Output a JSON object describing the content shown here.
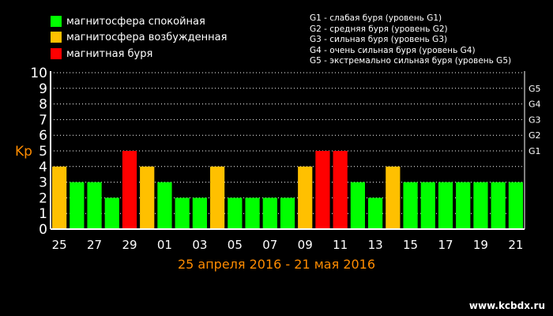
{
  "legend": [
    {
      "label": "магнитосфера спокойная",
      "color": "#00ff00"
    },
    {
      "label": "магнитосфера возбужденная",
      "color": "#ffc000"
    },
    {
      "label": "магнитная буря",
      "color": "#ff0000"
    }
  ],
  "storm_levels": [
    "G1 - слабая буря (уровень G1)",
    "G2 - средняя буря (уровень G2)",
    "G3 - сильная буря (уровень G3)",
    "G4 - очень сильная буря (уровень G4)",
    "G5 - экстремально сильная буря (уровень G5)"
  ],
  "period": "25 апреля 2016 - 21 мая 2016",
  "watermark": "www.kcbdx.ru",
  "chart_data": {
    "type": "bar",
    "ylabel": "Kp",
    "ylim": [
      0,
      10
    ],
    "yticks": [
      0,
      1,
      2,
      3,
      4,
      5,
      6,
      7,
      8,
      9,
      10
    ],
    "right_ticks": [
      {
        "value": 5,
        "label": "G1"
      },
      {
        "value": 6,
        "label": "G2"
      },
      {
        "value": 7,
        "label": "G3"
      },
      {
        "value": 8,
        "label": "G4"
      },
      {
        "value": 9,
        "label": "G5"
      }
    ],
    "x_tick_labels": [
      "25",
      "27",
      "29",
      "01",
      "03",
      "05",
      "07",
      "09",
      "11",
      "13",
      "15",
      "17",
      "19",
      "21"
    ],
    "grid": "horizontal dotted",
    "values": [
      4,
      3,
      3,
      2,
      5,
      4,
      3,
      2,
      2,
      4,
      2,
      2,
      2,
      2,
      4,
      5,
      5,
      3,
      2,
      4,
      3,
      3,
      3,
      3,
      3,
      3,
      3
    ],
    "colors": [
      "#ffc000",
      "#00ff00",
      "#00ff00",
      "#00ff00",
      "#ff0000",
      "#ffc000",
      "#00ff00",
      "#00ff00",
      "#00ff00",
      "#ffc000",
      "#00ff00",
      "#00ff00",
      "#00ff00",
      "#00ff00",
      "#ffc000",
      "#ff0000",
      "#ff0000",
      "#00ff00",
      "#00ff00",
      "#ffc000",
      "#00ff00",
      "#00ff00",
      "#00ff00",
      "#00ff00",
      "#00ff00",
      "#00ff00",
      "#00ff00"
    ]
  }
}
